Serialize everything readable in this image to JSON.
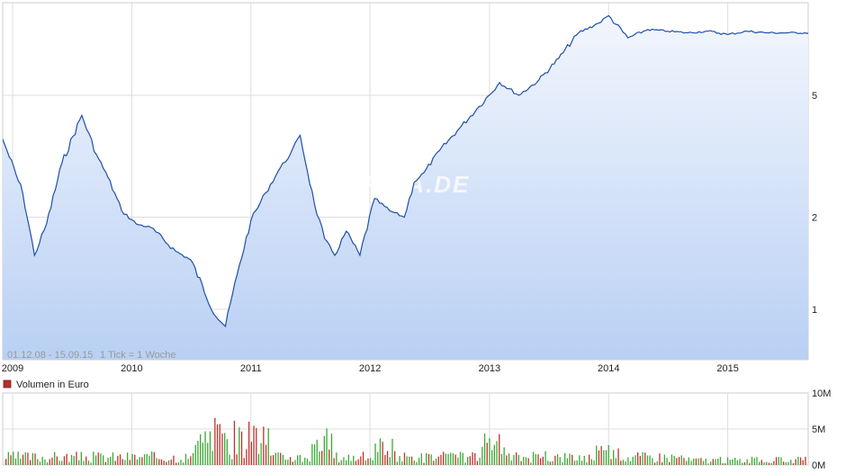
{
  "chart_data": [
    {
      "type": "area",
      "scale": "log",
      "y_ticks": [
        {
          "value": 1,
          "label": "1"
        },
        {
          "value": 2,
          "label": "2"
        },
        {
          "value": 5,
          "label": "5"
        }
      ],
      "x_ticks": [
        "2009",
        "2010",
        "2011",
        "2012",
        "2013",
        "2014",
        "2015"
      ],
      "period_label": "01.12.08 - 15.09.15",
      "tick_label": "1 Tick = 1 Woche",
      "watermark": "ARIVA.DE",
      "grid": true,
      "colors": {
        "line": "#1f4fa8",
        "fill_top": "#f2f6fd",
        "fill_bottom": "#b9d0f4",
        "grid": "#dddddd"
      },
      "x": [
        "2008-12-01",
        "2008-12-15",
        "2009-02-01",
        "2009-03-09",
        "2009-04-15",
        "2009-06-01",
        "2009-08-01",
        "2009-09-15",
        "2009-10-20",
        "2009-12-01",
        "2010-01-15",
        "2010-03-01",
        "2010-05-15",
        "2010-07-01",
        "2010-09-15",
        "2010-10-15",
        "2010-11-20",
        "2011-01-01",
        "2011-02-15",
        "2011-04-01",
        "2011-05-01",
        "2011-06-01",
        "2011-07-15",
        "2011-08-15",
        "2011-09-15",
        "2011-10-20",
        "2011-12-01",
        "2012-01-15",
        "2012-03-01",
        "2012-04-15",
        "2012-05-15",
        "2012-06-15",
        "2012-08-01",
        "2012-10-01",
        "2012-12-01",
        "2013-02-01",
        "2013-04-01",
        "2013-06-01",
        "2013-08-01",
        "2013-10-01",
        "2013-12-01",
        "2014-01-01",
        "2014-03-01",
        "2014-05-01",
        "2014-07-01",
        "2014-09-01",
        "2014-11-01",
        "2015-01-01",
        "2015-03-01",
        "2015-05-01",
        "2015-07-01",
        "2015-09-15"
      ],
      "y": [
        3.6,
        3.3,
        2.4,
        1.5,
        1.9,
        3.0,
        4.3,
        3.2,
        2.7,
        2.1,
        1.9,
        1.85,
        1.55,
        1.45,
        0.95,
        0.88,
        1.3,
        1.95,
        2.4,
        2.9,
        3.2,
        3.7,
        2.2,
        1.7,
        1.5,
        1.8,
        1.5,
        2.3,
        2.1,
        2.0,
        2.6,
        2.8,
        3.3,
        3.9,
        4.6,
        5.5,
        5.0,
        5.6,
        6.6,
        8.0,
        8.6,
        9.1,
        7.7,
        8.2,
        8.1,
        8.0,
        8.1,
        7.9,
        8.1,
        8.0,
        8.0,
        8.0
      ],
      "volume": {
        "label": "Volumen in Euro",
        "unit": "Mio. Euro",
        "y_ticks": [
          {
            "value": 0,
            "label": "0M"
          },
          {
            "value": 5,
            "label": "5M"
          },
          {
            "value": 10,
            "label": "10M"
          }
        ],
        "colors": {
          "up": "#3aa832",
          "down": "#c0302a",
          "legend": "#b23030"
        }
      }
    }
  ]
}
